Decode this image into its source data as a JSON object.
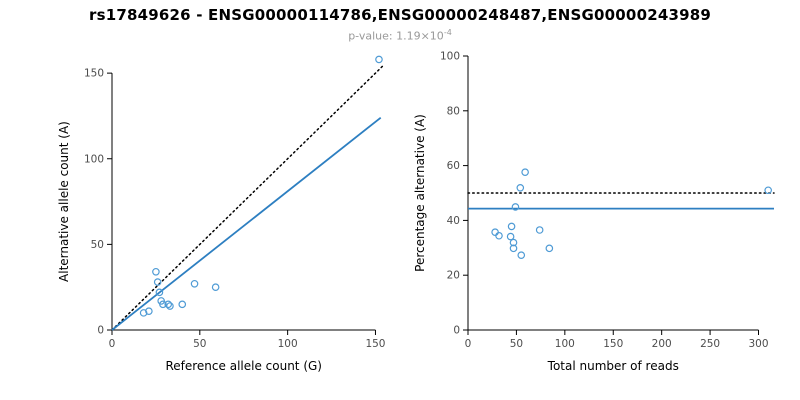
{
  "figure": {
    "title": "rs17849626 - ENSG00000114786,ENSG00000248487,ENSG00000243989",
    "pvalue_label": "p-value: 1.19×10",
    "pvalue_exponent": "-4"
  },
  "colors": {
    "point": "#4f9bd5",
    "fit_line": "#2d7fc1",
    "identity_line": "#000000",
    "tick_text": "#4d4d4d",
    "axis_text": "#000000",
    "subtitle_text": "#999999"
  },
  "chart_data": [
    {
      "type": "scatter",
      "title": "",
      "xlabel": "Reference allele count (G)",
      "ylabel": "Alternative allele count (A)",
      "xlim": [
        0,
        156
      ],
      "ylim": [
        0,
        160
      ],
      "xticks": [
        0,
        50,
        100,
        150
      ],
      "yticks": [
        0,
        50,
        100,
        150
      ],
      "grid": false,
      "legend": "none",
      "points": [
        [
          18,
          10
        ],
        [
          21,
          11
        ],
        [
          25,
          34
        ],
        [
          26,
          28
        ],
        [
          27,
          22
        ],
        [
          28,
          17
        ],
        [
          29,
          15
        ],
        [
          32,
          15
        ],
        [
          33,
          14
        ],
        [
          40,
          15
        ],
        [
          47,
          27
        ],
        [
          59,
          25
        ],
        [
          152,
          158
        ]
      ],
      "lines": [
        {
          "name": "identity-line",
          "style": "dotted",
          "color": "#000000",
          "from": [
            0,
            0
          ],
          "to": [
            155,
            155
          ]
        },
        {
          "name": "fit-line",
          "style": "solid",
          "color": "#2d7fc1",
          "from": [
            0,
            0
          ],
          "to": [
            153,
            124
          ]
        }
      ]
    },
    {
      "type": "scatter",
      "title": "",
      "xlabel": "Total number of reads",
      "ylabel": "Percentage alternative (A)",
      "xlim": [
        0,
        316
      ],
      "ylim": [
        0,
        100
      ],
      "xticks": [
        0,
        50,
        100,
        150,
        200,
        250,
        300
      ],
      "yticks": [
        0,
        20,
        40,
        60,
        80,
        100
      ],
      "grid": false,
      "legend": "none",
      "points": [
        [
          28,
          35.7
        ],
        [
          32,
          34.4
        ],
        [
          59,
          57.6
        ],
        [
          54,
          51.9
        ],
        [
          49,
          44.9
        ],
        [
          45,
          37.8
        ],
        [
          44,
          34.1
        ],
        [
          47,
          31.9
        ],
        [
          47,
          29.8
        ],
        [
          55,
          27.3
        ],
        [
          74,
          36.5
        ],
        [
          84,
          29.8
        ],
        [
          310,
          51
        ]
      ],
      "lines": [
        {
          "name": "expected-50pct-line",
          "style": "dotted",
          "color": "#000000",
          "from": [
            0,
            50
          ],
          "to": [
            316,
            50
          ]
        },
        {
          "name": "mean-percentage-line",
          "style": "solid",
          "color": "#2d7fc1",
          "from": [
            0,
            44.3
          ],
          "to": [
            316,
            44.3
          ]
        }
      ]
    }
  ]
}
